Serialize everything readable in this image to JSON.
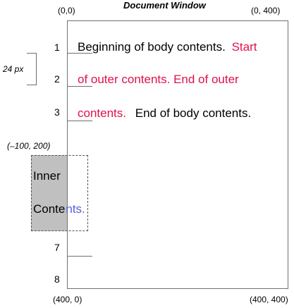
{
  "title": "Document Window",
  "corners": {
    "top_left": "(0,0)",
    "top_right": "(0, 400)",
    "bottom_left": "(400, 0)",
    "bottom_right": "(400, 400)",
    "inner_origin": "(–100, 200)"
  },
  "spacing_label": "24 px",
  "line_numbers": [
    "1",
    "2",
    "3",
    "7",
    "8"
  ],
  "lines": {
    "line1_black": "Beginning of body contents.",
    "line1_red": "Start",
    "line2_red": "of outer contents. End of outer",
    "line3_red": "contents.",
    "line3_black": "End of body contents."
  },
  "inner": {
    "line1": "Inner",
    "line2_black": "Conte",
    "line2_blue": "nts."
  },
  "colors": {
    "outer_contents": "#e0104a",
    "clipped_inner": "#5560d8",
    "inner_fill": "#c0c0c0"
  }
}
